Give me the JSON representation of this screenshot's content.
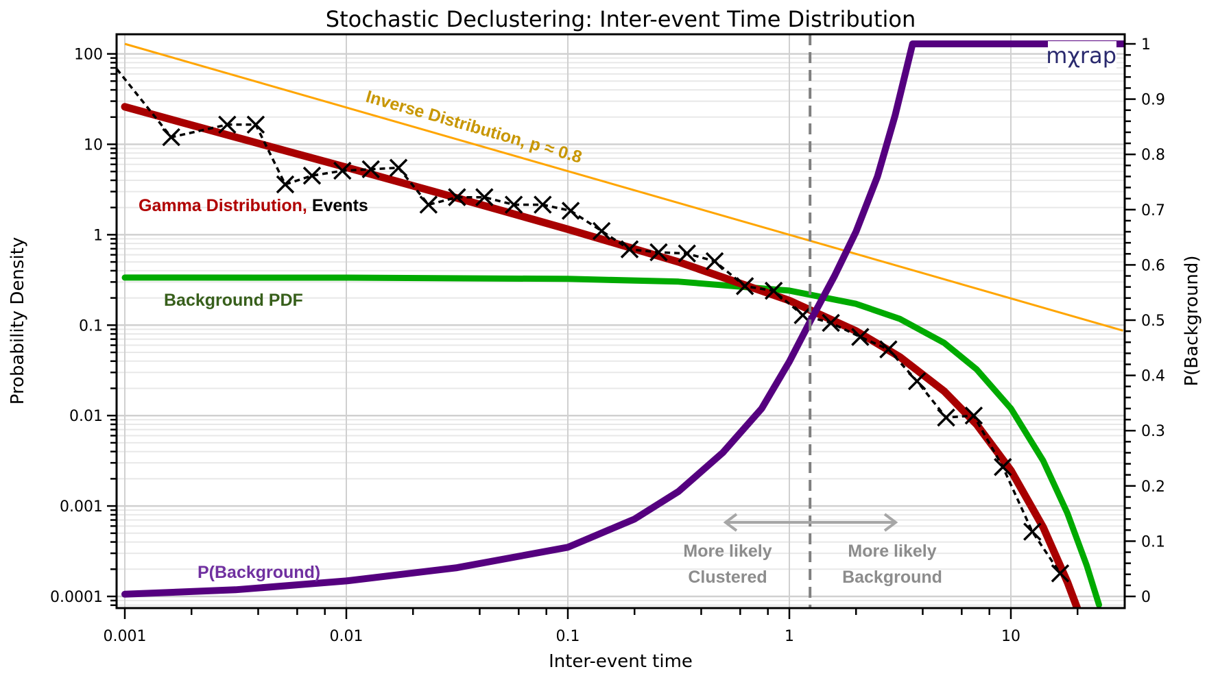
{
  "chart_data": {
    "type": "line",
    "title": "Stochastic Declustering: Inter-event Time Distribution",
    "xlabel": "Inter-event time",
    "ylabel": "Probability Density",
    "y2label": "P(Background)",
    "xscale": "log",
    "yscale": "log",
    "xlim": [
      0.00092,
      32.7
    ],
    "ylim": [
      7.4e-05,
      162
    ],
    "y2lim": [
      0,
      1
    ],
    "x_ticks": [
      "0.001",
      "0.01",
      "0.1",
      "1",
      "10"
    ],
    "y_ticks": [
      "0.0001",
      "0.001",
      "0.01",
      "0.1",
      "1",
      "10",
      "100"
    ],
    "y2_ticks": [
      "0",
      "0.1",
      "0.2",
      "0.3",
      "0.4",
      "0.5",
      "0.6",
      "0.7",
      "0.8",
      "0.9",
      "1"
    ],
    "grid": true,
    "series": [
      {
        "name": "Inverse Distribution, p ≈ 0.8",
        "color": "#ffa500",
        "axis": "left",
        "x": [
          0.001,
          32.1
        ],
        "y": [
          129,
          0.087
        ]
      },
      {
        "name": "Gamma Distribution",
        "color": "#a80000",
        "axis": "left",
        "x": [
          0.001,
          0.00316,
          0.01,
          0.0316,
          0.1,
          0.316,
          1,
          2,
          3.16,
          5,
          7,
          10,
          14,
          18,
          20
        ],
        "y": [
          26,
          12.0,
          5.56,
          2.55,
          1.15,
          0.5,
          0.187,
          0.0864,
          0.0444,
          0.0186,
          0.008,
          0.00248,
          0.00058,
          0.000144,
          7.27e-05
        ]
      },
      {
        "name": "Background PDF",
        "color": "#00aa00",
        "axis": "left",
        "x": [
          0.001,
          0.01,
          0.1,
          0.316,
          1,
          2,
          3.16,
          5,
          7,
          10,
          14,
          18,
          22,
          25
        ],
        "y": [
          0.336,
          0.335,
          0.325,
          0.303,
          0.241,
          0.172,
          0.117,
          0.0636,
          0.0325,
          0.012,
          0.00316,
          0.00083,
          0.00022,
          8.08e-05
        ]
      },
      {
        "name": "Events",
        "color": "#000000",
        "axis": "left",
        "style": "dotted-with-x-markers",
        "x": [
          0.00092,
          0.00162,
          0.0029,
          0.0039,
          0.0053,
          0.007,
          0.0096,
          0.0129,
          0.0172,
          0.0235,
          0.0316,
          0.042,
          0.057,
          0.077,
          0.103,
          0.142,
          0.19,
          0.257,
          0.345,
          0.46,
          0.63,
          0.85,
          1.15,
          1.54,
          2.09,
          2.8,
          3.77,
          5.1,
          6.8,
          9.2,
          12.5,
          16.7
        ],
        "y": [
          68,
          12,
          16.5,
          16.5,
          3.6,
          4.5,
          5.1,
          5.3,
          5.5,
          2.15,
          2.6,
          2.6,
          2.15,
          2.15,
          1.84,
          1.1,
          0.69,
          0.64,
          0.62,
          0.51,
          0.27,
          0.24,
          0.129,
          0.106,
          0.074,
          0.054,
          0.024,
          0.0095,
          0.01,
          0.0027,
          0.00052,
          0.00018
        ]
      },
      {
        "name": "P(Background)",
        "color": "#55007f",
        "axis": "right",
        "x": [
          0.001,
          0.00316,
          0.01,
          0.0316,
          0.1,
          0.2,
          0.316,
          0.5,
          0.75,
          1,
          1.25,
          1.6,
          2,
          2.5,
          3,
          3.6,
          32.7
        ],
        "y": [
          0.004,
          0.012,
          0.028,
          0.052,
          0.089,
          0.14,
          0.19,
          0.26,
          0.34,
          0.425,
          0.5,
          0.58,
          0.66,
          0.76,
          0.87,
          1.0,
          1.0
        ]
      }
    ],
    "threshold_x": 1.24,
    "annotations": {
      "inverse": "Inverse Distribution, p ≈ 0.8",
      "gamma": "Gamma Distribution,",
      "events": "Events",
      "background_pdf": "Background PDF",
      "p_background": "P(Background)",
      "clustered_line1": "More likely",
      "clustered_line2": "Clustered",
      "background_line1": "More likely",
      "background_line2": "Background"
    },
    "logo": "mχrap"
  }
}
